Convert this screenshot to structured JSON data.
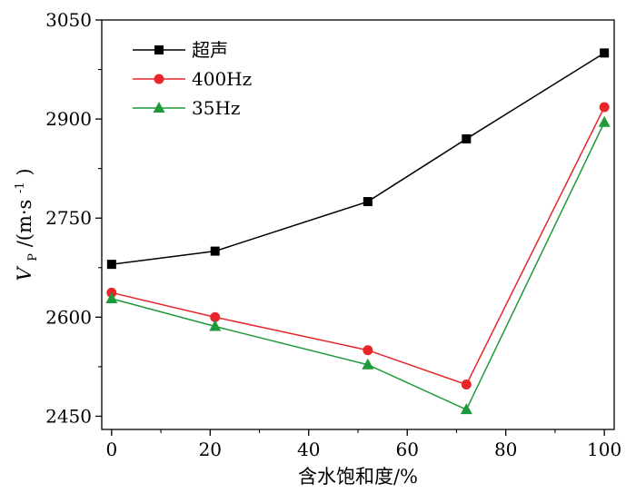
{
  "chart_data": {
    "type": "line",
    "xlabel": "含水饱和度/%",
    "ylabel": {
      "symbol": "V",
      "subscript": "P",
      "unit_open": "/(m·s",
      "unit_sup": "-1",
      "unit_close": ")"
    },
    "xlim": [
      -2,
      102
    ],
    "ylim": [
      2430,
      3050
    ],
    "xticks": [
      0,
      20,
      40,
      60,
      80,
      100
    ],
    "yticks": [
      2450,
      2600,
      2750,
      2900,
      3050
    ],
    "x_tick_labels": [
      "0",
      "20",
      "40",
      "60",
      "80",
      "100"
    ],
    "y_tick_labels": [
      "2450",
      "2600",
      "2750",
      "2900",
      "3050"
    ],
    "legend_position": "top-left",
    "grid": false,
    "series": [
      {
        "name": "超声",
        "color": "#000000",
        "marker": "square",
        "x": [
          0,
          21,
          52,
          72,
          100
        ],
        "y": [
          2680,
          2700,
          2775,
          2870,
          3000
        ]
      },
      {
        "name": "400Hz",
        "color": "#e8262a",
        "marker": "circle",
        "x": [
          0,
          21,
          52,
          72,
          100
        ],
        "y": [
          2637,
          2600,
          2550,
          2498,
          2918
        ]
      },
      {
        "name": "35Hz",
        "color": "#1f9a3b",
        "marker": "triangle",
        "x": [
          0,
          21,
          52,
          72,
          100
        ],
        "y": [
          2628,
          2586,
          2528,
          2460,
          2895
        ]
      }
    ]
  }
}
